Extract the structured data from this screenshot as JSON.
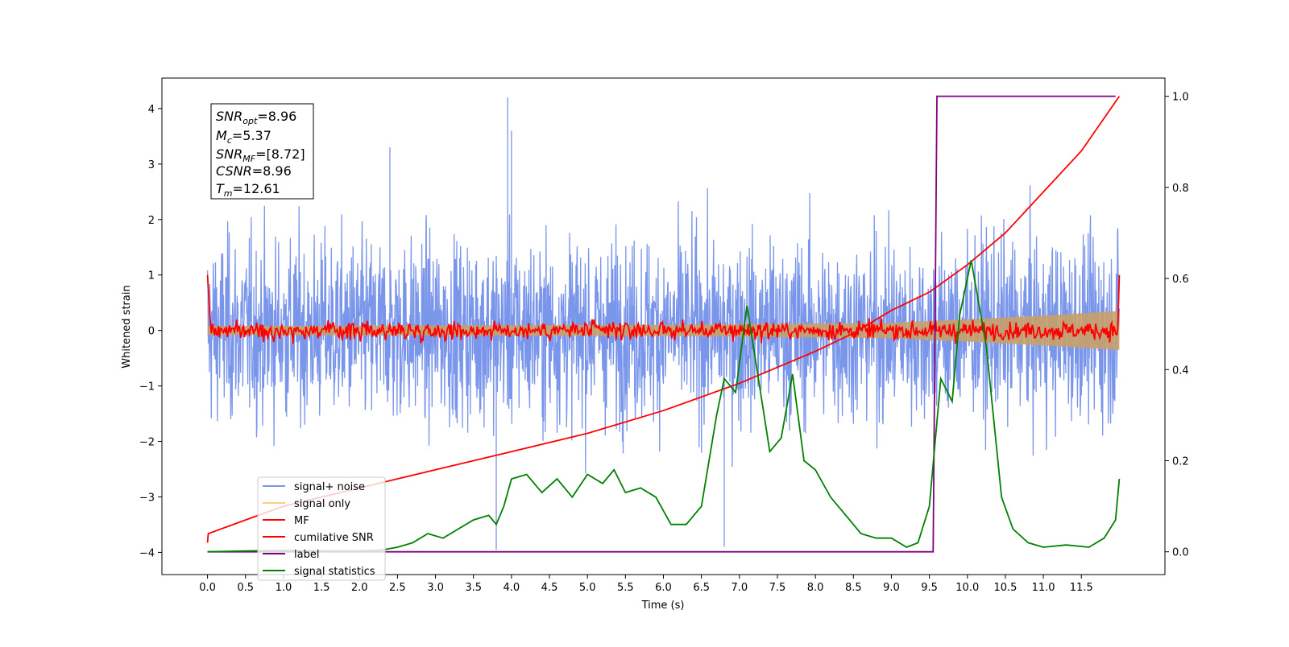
{
  "chart_data": {
    "type": "line",
    "xlabel": "Time (s)",
    "ylabel": "Whitened strain",
    "xlim": [
      -0.6,
      12.6
    ],
    "ylim": [
      -4.4,
      4.55
    ],
    "y2lim": [
      -0.05,
      1.04
    ],
    "x_ticks": [
      "0.0",
      "0.5",
      "1.0",
      "1.5",
      "2.0",
      "2.5",
      "3.0",
      "3.5",
      "4.0",
      "4.5",
      "5.0",
      "5.5",
      "6.0",
      "6.5",
      "7.0",
      "7.5",
      "8.0",
      "8.5",
      "9.0",
      "9.5",
      "10.0",
      "10.5",
      "11.0",
      "11.5"
    ],
    "y_ticks": [
      "4",
      "3",
      "2",
      "1",
      "0",
      "−1",
      "−2",
      "−3",
      "−4"
    ],
    "y2_ticks": [
      "1.0",
      "0.8",
      "0.6",
      "0.4",
      "0.2",
      "0.0"
    ],
    "grid": false,
    "legend_position": "lower-left",
    "colors": {
      "noise": "#4169e1",
      "signal": "#ffa500",
      "mf": "#ff0000",
      "csnr": "#ff0000",
      "label": "#800080",
      "stats": "#008000"
    },
    "series": [
      {
        "name": "signal+ noise",
        "axis": "left",
        "color": "#4169e1",
        "values": "dense whitened noise spanning roughly -3 to 3 with spikes to 4.2 (t≈3.95) and -3.9 (t≈3.8, 6.8)"
      },
      {
        "name": "signal only",
        "axis": "left",
        "color": "#ffa500",
        "envelope": [
          [
            0,
            0.08
          ],
          [
            6,
            0.1
          ],
          [
            9,
            0.14
          ],
          [
            10,
            0.2
          ],
          [
            11,
            0.27
          ],
          [
            12,
            0.35
          ]
        ]
      },
      {
        "name": "MF",
        "axis": "left",
        "color": "#ff0000",
        "values": "starts at 1.0 at t=0, drops to ~0 and fluctuates within ±0.3; jumps to 1.0 at t=12"
      },
      {
        "name": "cumilative SNR",
        "axis": "right",
        "color": "#ff0000",
        "points": [
          [
            0.0,
            0.02
          ],
          [
            0.01,
            0.04
          ],
          [
            0.5,
            0.07
          ],
          [
            1.0,
            0.1
          ],
          [
            2.0,
            0.14
          ],
          [
            3.0,
            0.18
          ],
          [
            4.0,
            0.22
          ],
          [
            5.0,
            0.26
          ],
          [
            6.0,
            0.31
          ],
          [
            7.0,
            0.37
          ],
          [
            8.0,
            0.44
          ],
          [
            8.5,
            0.48
          ],
          [
            9.0,
            0.53
          ],
          [
            9.5,
            0.57
          ],
          [
            10.0,
            0.63
          ],
          [
            10.5,
            0.7
          ],
          [
            11.0,
            0.79
          ],
          [
            11.5,
            0.88
          ],
          [
            12.0,
            1.0
          ]
        ]
      },
      {
        "name": "label",
        "axis": "right",
        "color": "#800080",
        "points": [
          [
            0.0,
            0.0
          ],
          [
            9.55,
            0.0
          ],
          [
            9.6,
            1.0
          ],
          [
            11.95,
            1.0
          ]
        ]
      },
      {
        "name": "signal statistics",
        "axis": "right",
        "color": "#008000",
        "points": [
          [
            0.0,
            0.0
          ],
          [
            0.5,
            0.002
          ],
          [
            1.0,
            0.003
          ],
          [
            1.5,
            0.002
          ],
          [
            2.0,
            0.002
          ],
          [
            2.3,
            0.004
          ],
          [
            2.5,
            0.01
          ],
          [
            2.7,
            0.02
          ],
          [
            2.9,
            0.04
          ],
          [
            3.1,
            0.03
          ],
          [
            3.3,
            0.05
          ],
          [
            3.5,
            0.07
          ],
          [
            3.7,
            0.08
          ],
          [
            3.8,
            0.06
          ],
          [
            3.9,
            0.1
          ],
          [
            4.0,
            0.16
          ],
          [
            4.2,
            0.17
          ],
          [
            4.4,
            0.13
          ],
          [
            4.6,
            0.16
          ],
          [
            4.8,
            0.12
          ],
          [
            5.0,
            0.17
          ],
          [
            5.2,
            0.15
          ],
          [
            5.35,
            0.18
          ],
          [
            5.5,
            0.13
          ],
          [
            5.7,
            0.14
          ],
          [
            5.9,
            0.12
          ],
          [
            6.1,
            0.06
          ],
          [
            6.3,
            0.06
          ],
          [
            6.5,
            0.1
          ],
          [
            6.7,
            0.3
          ],
          [
            6.8,
            0.38
          ],
          [
            6.95,
            0.35
          ],
          [
            7.1,
            0.54
          ],
          [
            7.25,
            0.38
          ],
          [
            7.4,
            0.22
          ],
          [
            7.55,
            0.25
          ],
          [
            7.7,
            0.39
          ],
          [
            7.85,
            0.2
          ],
          [
            8.0,
            0.18
          ],
          [
            8.2,
            0.12
          ],
          [
            8.4,
            0.08
          ],
          [
            8.6,
            0.04
          ],
          [
            8.8,
            0.03
          ],
          [
            9.0,
            0.03
          ],
          [
            9.2,
            0.01
          ],
          [
            9.35,
            0.02
          ],
          [
            9.5,
            0.1
          ],
          [
            9.65,
            0.38
          ],
          [
            9.8,
            0.33
          ],
          [
            9.9,
            0.52
          ],
          [
            10.05,
            0.64
          ],
          [
            10.25,
            0.45
          ],
          [
            10.45,
            0.12
          ],
          [
            10.6,
            0.05
          ],
          [
            10.8,
            0.02
          ],
          [
            11.0,
            0.01
          ],
          [
            11.3,
            0.015
          ],
          [
            11.6,
            0.01
          ],
          [
            11.8,
            0.03
          ],
          [
            11.95,
            0.07
          ],
          [
            12.0,
            0.16
          ]
        ]
      }
    ]
  },
  "annotation": {
    "snr_opt": {
      "sym": "SNR",
      "sub": "opt",
      "value": "=8.96"
    },
    "mc": {
      "sym": "M",
      "sub": "c",
      "value": "=5.37"
    },
    "snr_mf": {
      "sym": "SNR",
      "sub": "MF",
      "value": "=[8.72]"
    },
    "csnr": {
      "sym": "CSNR",
      "sub": "",
      "value": "=8.96"
    },
    "tm": {
      "sym": "T",
      "sub": "m",
      "value": "=12.61"
    }
  },
  "legend": {
    "items": [
      {
        "label": "signal+ noise",
        "color": "#7b93e8"
      },
      {
        "label": "signal only",
        "color": "#ffcc80"
      },
      {
        "label": "MF",
        "color": "#ff0000"
      },
      {
        "label": "cumilative SNR",
        "color": "#ff0000"
      },
      {
        "label": "label",
        "color": "#800080"
      },
      {
        "label": "signal statistics",
        "color": "#008000"
      }
    ]
  }
}
